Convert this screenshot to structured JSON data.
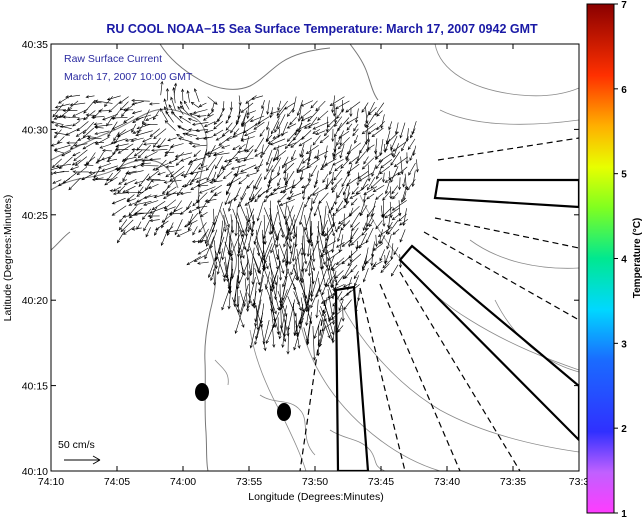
{
  "title": "RU COOL  NOAA−15  Sea Surface Temperature:  March 17, 2007 0942 GMT",
  "legend": {
    "line1": "Raw Surface Current",
    "line2": "March 17, 2007 10:00 GMT",
    "scale_label": "50 cm/s"
  },
  "axes": {
    "xlabel": "Longitude (Degrees:Minutes)",
    "ylabel": "Latitude (Degrees:Minutes)",
    "x_ticks": [
      "74:10",
      "74:05",
      "74:00",
      "73:55",
      "73:50",
      "73:45",
      "73:40",
      "73:35",
      "73:3"
    ],
    "y_ticks": [
      "40:35",
      "40:30",
      "40:25",
      "40:20",
      "40:15",
      "40:10"
    ]
  },
  "colorbar": {
    "label": "Temperature (°C)",
    "ticks": [
      "7",
      "6",
      "5",
      "4",
      "3",
      "2",
      "1"
    ],
    "range": [
      1,
      7
    ]
  },
  "map": {
    "lon_range_deg_min": [
      "74:10",
      "73:30"
    ],
    "lat_range_deg_min": [
      "40:10",
      "40:35"
    ],
    "features": [
      "coastline",
      "bathymetry contours",
      "surface current vectors",
      "shipping lanes",
      "dredge disposal markers"
    ]
  }
}
